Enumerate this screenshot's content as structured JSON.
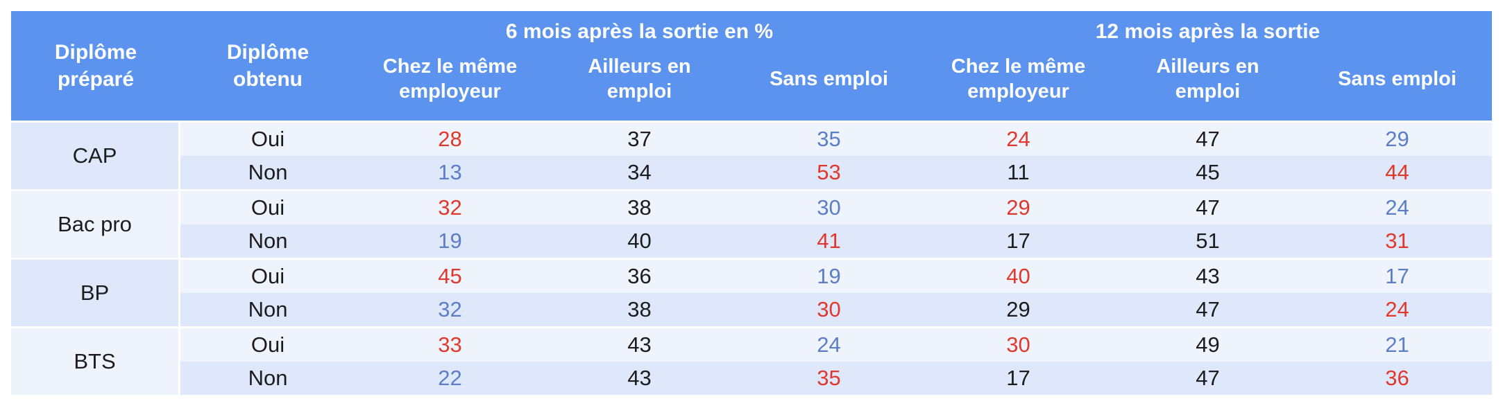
{
  "colors": {
    "header_bg": "#5B93EE",
    "header_text": "#FFFFFF",
    "row_light_bg": "#EFF4FC",
    "row_dark_bg": "#DFE8FA",
    "value_red": "#E0382C",
    "value_blue": "#5B7EC8",
    "value_black": "#1C1C1E"
  },
  "chart_data": {
    "type": "table",
    "header": {
      "diploma_prepared": "Diplôme préparé",
      "diploma_obtained": "Diplôme obtenu",
      "group_6m": "6 mois après la sortie en %",
      "group_12m": "12 mois après la sortie",
      "sub_same_employer": "Chez le même employeur",
      "sub_elsewhere": "Ailleurs en emploi",
      "sub_unemployed": "Sans emploi"
    },
    "column_groups": [
      {
        "label": "6 mois après la sortie en %",
        "columns": [
          "Chez le même employeur",
          "Ailleurs en emploi",
          "Sans emploi"
        ]
      },
      {
        "label": "12 mois après la sortie",
        "columns": [
          "Chez le même employeur",
          "Ailleurs en emploi",
          "Sans emploi"
        ]
      }
    ],
    "rows": [
      {
        "diploma": "CAP",
        "obtained": "Oui",
        "values_6m": [
          28,
          37,
          35
        ],
        "colors_6m": [
          "red",
          "black",
          "blue"
        ],
        "values_12m": [
          24,
          47,
          29
        ],
        "colors_12m": [
          "red",
          "black",
          "blue"
        ]
      },
      {
        "diploma": "CAP",
        "obtained": "Non",
        "values_6m": [
          13,
          34,
          53
        ],
        "colors_6m": [
          "blue",
          "black",
          "red"
        ],
        "values_12m": [
          11,
          45,
          44
        ],
        "colors_12m": [
          "black",
          "black",
          "red"
        ]
      },
      {
        "diploma": "Bac pro",
        "obtained": "Oui",
        "values_6m": [
          32,
          38,
          30
        ],
        "colors_6m": [
          "red",
          "black",
          "blue"
        ],
        "values_12m": [
          29,
          47,
          24
        ],
        "colors_12m": [
          "red",
          "black",
          "blue"
        ]
      },
      {
        "diploma": "Bac pro",
        "obtained": "Non",
        "values_6m": [
          19,
          40,
          41
        ],
        "colors_6m": [
          "blue",
          "black",
          "red"
        ],
        "values_12m": [
          17,
          51,
          31
        ],
        "colors_12m": [
          "black",
          "black",
          "red"
        ]
      },
      {
        "diploma": "BP",
        "obtained": "Oui",
        "values_6m": [
          45,
          36,
          19
        ],
        "colors_6m": [
          "red",
          "black",
          "blue"
        ],
        "values_12m": [
          40,
          43,
          17
        ],
        "colors_12m": [
          "red",
          "black",
          "blue"
        ]
      },
      {
        "diploma": "BP",
        "obtained": "Non",
        "values_6m": [
          32,
          38,
          30
        ],
        "colors_6m": [
          "blue",
          "black",
          "red"
        ],
        "values_12m": [
          29,
          47,
          24
        ],
        "colors_12m": [
          "black",
          "black",
          "red"
        ]
      },
      {
        "diploma": "BTS",
        "obtained": "Oui",
        "values_6m": [
          33,
          43,
          24
        ],
        "colors_6m": [
          "red",
          "black",
          "blue"
        ],
        "values_12m": [
          30,
          49,
          21
        ],
        "colors_12m": [
          "red",
          "black",
          "blue"
        ]
      },
      {
        "diploma": "BTS",
        "obtained": "Non",
        "values_6m": [
          22,
          43,
          35
        ],
        "colors_6m": [
          "blue",
          "black",
          "red"
        ],
        "values_12m": [
          17,
          47,
          36
        ],
        "colors_12m": [
          "black",
          "black",
          "red"
        ]
      }
    ]
  }
}
